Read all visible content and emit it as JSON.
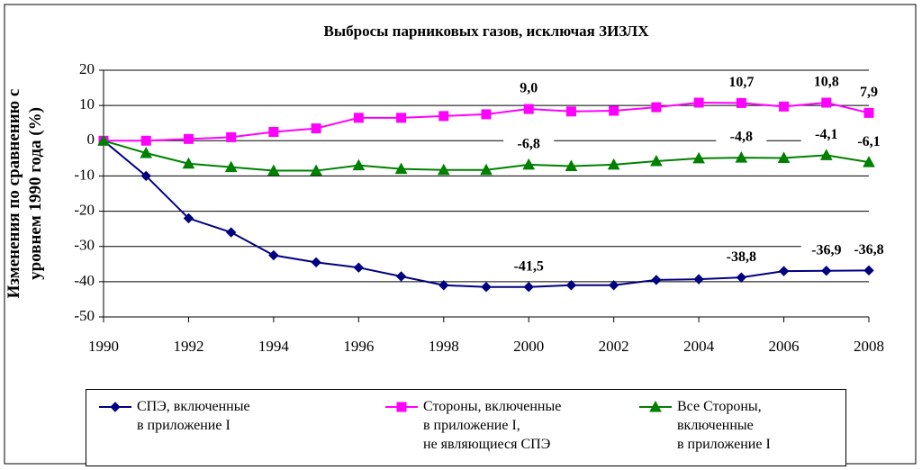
{
  "chart_data": {
    "type": "line",
    "title": "Выбросы парниковых газов, исключая ЗИЗЛХ",
    "ylabel": "Изменения по сравнению с\nуровнем 1990 года (%)",
    "x": [
      1990,
      1991,
      1992,
      1993,
      1994,
      1995,
      1996,
      1997,
      1998,
      1999,
      2000,
      2001,
      2002,
      2003,
      2004,
      2005,
      2006,
      2007,
      2008
    ],
    "xlim": [
      1990,
      2008
    ],
    "xticks": [
      1990,
      1992,
      1994,
      1996,
      1998,
      2000,
      2002,
      2004,
      2006,
      2008
    ],
    "ylim": [
      -50,
      20
    ],
    "yticks": [
      -50,
      -40,
      -30,
      -20,
      -10,
      0,
      10,
      20
    ],
    "grid": true,
    "series": [
      {
        "name": "СПЭ, включенные\nв приложение I",
        "color": "#000080",
        "marker": "diamond",
        "values": [
          0,
          -10,
          -22,
          -26,
          -32.5,
          -34.5,
          -36,
          -38.5,
          -41,
          -41.5,
          -41.5,
          -41,
          -41,
          -39.5,
          -39.3,
          -38.8,
          -37,
          -36.9,
          -36.8
        ],
        "value_labels": [
          null,
          null,
          null,
          null,
          null,
          null,
          null,
          null,
          null,
          null,
          "-41,5",
          null,
          null,
          null,
          null,
          "-38,8",
          null,
          "-36,9",
          "-36,8"
        ]
      },
      {
        "name": "Стороны, включенные\nв приложение I,\nне являющиеся СПЭ",
        "color": "#ff00ff",
        "marker": "square",
        "values": [
          0,
          0,
          0.5,
          1,
          2.5,
          3.5,
          6.5,
          6.5,
          7,
          7.5,
          9,
          8.3,
          8.5,
          9.5,
          10.8,
          10.7,
          9.7,
          10.8,
          7.9
        ],
        "value_labels": [
          null,
          null,
          null,
          null,
          null,
          null,
          null,
          null,
          null,
          null,
          "9,0",
          null,
          null,
          null,
          null,
          "10,7",
          null,
          "10,8",
          "7,9"
        ]
      },
      {
        "name": "Все Стороны,\nвключенные\nв приложение I",
        "color": "#008000",
        "marker": "triangle",
        "values": [
          0,
          -3.5,
          -6.5,
          -7.5,
          -8.5,
          -8.5,
          -7,
          -8,
          -8.3,
          -8.3,
          -6.8,
          -7.2,
          -6.8,
          -5.8,
          -5,
          -4.8,
          -4.9,
          -4.1,
          -6.1
        ],
        "value_labels": [
          null,
          null,
          null,
          null,
          null,
          null,
          null,
          null,
          null,
          null,
          "-6,8",
          null,
          null,
          null,
          null,
          "-4,8",
          null,
          "-4,1",
          "-6,1"
        ]
      }
    ]
  }
}
